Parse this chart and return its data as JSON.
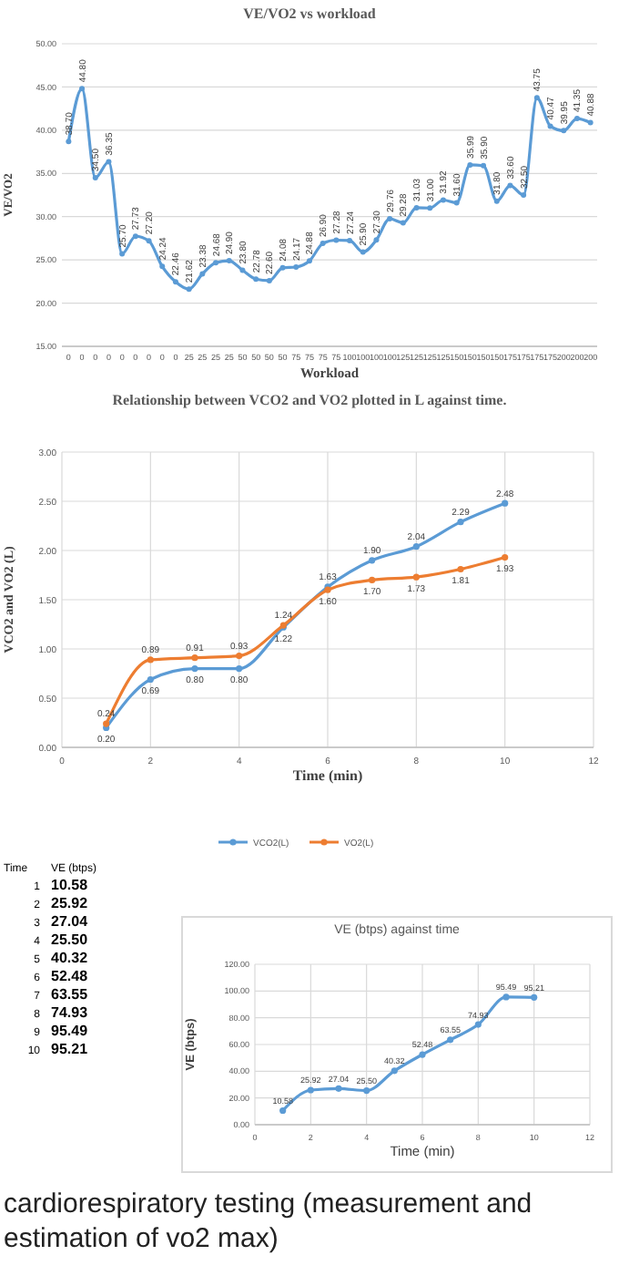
{
  "chart_data": [
    {
      "type": "line",
      "title": "VE/VO2 vs workload",
      "xlabel": "Workload",
      "ylabel": "VE/VO2",
      "categories": [
        "0",
        "0",
        "0",
        "0",
        "0",
        "0",
        "0",
        "0",
        "0",
        "25",
        "25",
        "25",
        "25",
        "50",
        "50",
        "50",
        "50",
        "75",
        "75",
        "75",
        "75",
        "100",
        "100",
        "100",
        "100",
        "125",
        "125",
        "125",
        "125",
        "150",
        "150",
        "150",
        "150",
        "175",
        "175",
        "175",
        "175",
        "200",
        "200",
        "200"
      ],
      "series": [
        {
          "color": "#5b9bd5",
          "values": [
            38.7,
            44.8,
            34.5,
            36.35,
            25.7,
            27.73,
            27.2,
            24.24,
            22.46,
            21.62,
            23.38,
            24.68,
            24.9,
            23.8,
            22.78,
            22.6,
            24.08,
            24.17,
            24.88,
            26.9,
            27.28,
            27.24,
            25.9,
            27.3,
            29.76,
            29.28,
            31.03,
            31.0,
            31.92,
            31.6,
            35.99,
            35.9,
            31.8,
            33.6,
            32.5,
            43.75,
            40.47,
            39.95,
            41.35,
            40.88
          ],
          "value_labels": [
            "38.70",
            "44.80",
            "34.50",
            "36.35",
            "25.70",
            "27.73",
            "27.20",
            "24.24",
            "22.46",
            "21.62",
            "23.38",
            "24.68",
            "24.90",
            "23.80",
            "22.78",
            "22.60",
            "24.08",
            "24.17",
            "24.88",
            "26.90",
            "27.28",
            "27.24",
            "25.90",
            "27.30",
            "29.76",
            "29.28",
            "31.03",
            "31.00",
            "31.92",
            "31.60",
            "35.99",
            "35.90",
            "31.80",
            "33.60",
            "32.50",
            "43.75",
            "40.47",
            "39.95",
            "41.35",
            "40.88"
          ]
        }
      ],
      "ylim": [
        15,
        50
      ],
      "yticks": [
        {
          "value": 15,
          "label": "15.00"
        },
        {
          "value": 20,
          "label": "20.00"
        },
        {
          "value": 25,
          "label": "25.00"
        },
        {
          "value": 30,
          "label": "30.00"
        },
        {
          "value": 35,
          "label": "35.00"
        },
        {
          "value": 40,
          "label": "40.00"
        },
        {
          "value": 45,
          "label": "45.00"
        },
        {
          "value": 50,
          "label": "50.00"
        }
      ],
      "grid": "y",
      "marker": "circle"
    },
    {
      "type": "line",
      "title": "Relationship between VCO2 and VO2 plotted in L against time.",
      "xlabel": "Time (min)",
      "ylabel": "VCO2 and VO2 (L)",
      "x": [
        1,
        2,
        3,
        4,
        5,
        6,
        7,
        8,
        9,
        10
      ],
      "series": [
        {
          "name": "VCO2(L)",
          "color": "#5b9bd5",
          "values": [
            0.2,
            0.69,
            0.8,
            0.8,
            1.22,
            1.63,
            1.9,
            2.04,
            2.29,
            2.48
          ],
          "value_labels": [
            "0.20",
            "0.69",
            "0.80",
            "0.80",
            "1.22",
            "1.63",
            "1.90",
            "2.04",
            "2.29",
            "2.48"
          ]
        },
        {
          "name": "VO2(L)",
          "color": "#ed7d31",
          "values": [
            0.24,
            0.89,
            0.91,
            0.93,
            1.24,
            1.6,
            1.7,
            1.73,
            1.81,
            1.93
          ],
          "value_labels": [
            "0.24",
            "0.89",
            "0.91",
            "0.93",
            "1.24",
            "1.60",
            "1.70",
            "1.73",
            "1.81",
            "1.93"
          ]
        }
      ],
      "xlim": [
        0,
        12
      ],
      "xticks": [
        0,
        2,
        4,
        6,
        8,
        10,
        12
      ],
      "ylim": [
        0,
        3
      ],
      "yticks": [
        {
          "value": 0,
          "label": "0.00"
        },
        {
          "value": 0.5,
          "label": "0.50"
        },
        {
          "value": 1,
          "label": "1.00"
        },
        {
          "value": 1.5,
          "label": "1.50"
        },
        {
          "value": 2,
          "label": "2.00"
        },
        {
          "value": 2.5,
          "label": "2.50"
        },
        {
          "value": 3,
          "label": "3.00"
        }
      ],
      "grid": true,
      "legend": "bottom",
      "marker": "circle"
    },
    {
      "type": "line",
      "title": "VE (btps) against time",
      "xlabel": "Time (min)",
      "ylabel": "VE (btps)",
      "x": [
        1,
        2,
        3,
        4,
        5,
        6,
        7,
        8,
        9,
        10
      ],
      "series": [
        {
          "color": "#5b9bd5",
          "values": [
            10.58,
            25.92,
            27.04,
            25.5,
            40.32,
            52.48,
            63.55,
            74.93,
            95.49,
            95.21
          ],
          "value_labels": [
            "10.58",
            "25.92",
            "27.04",
            "25.50",
            "40.32",
            "52.48",
            "63.55",
            "74.93",
            "95.49",
            "95.21"
          ]
        }
      ],
      "xlim": [
        0,
        12
      ],
      "xticks": [
        0,
        2,
        4,
        6,
        8,
        10,
        12
      ],
      "ylim": [
        0,
        120
      ],
      "yticks": [
        {
          "value": 0,
          "label": "0.00"
        },
        {
          "value": 20,
          "label": "20.00"
        },
        {
          "value": 40,
          "label": "40.00"
        },
        {
          "value": 60,
          "label": "60.00"
        },
        {
          "value": 80,
          "label": "80.00"
        },
        {
          "value": 100,
          "label": "100.00"
        },
        {
          "value": 120,
          "label": "120.00"
        }
      ],
      "grid": true,
      "marker": "circle",
      "annotations": [
        "Time",
        "1",
        "2",
        "3",
        "4",
        "5",
        "6",
        "7",
        "8",
        "9",
        "10",
        "cardiorespiratory testing (measurement and estimation of vo2 max)"
      ]
    }
  ]
}
